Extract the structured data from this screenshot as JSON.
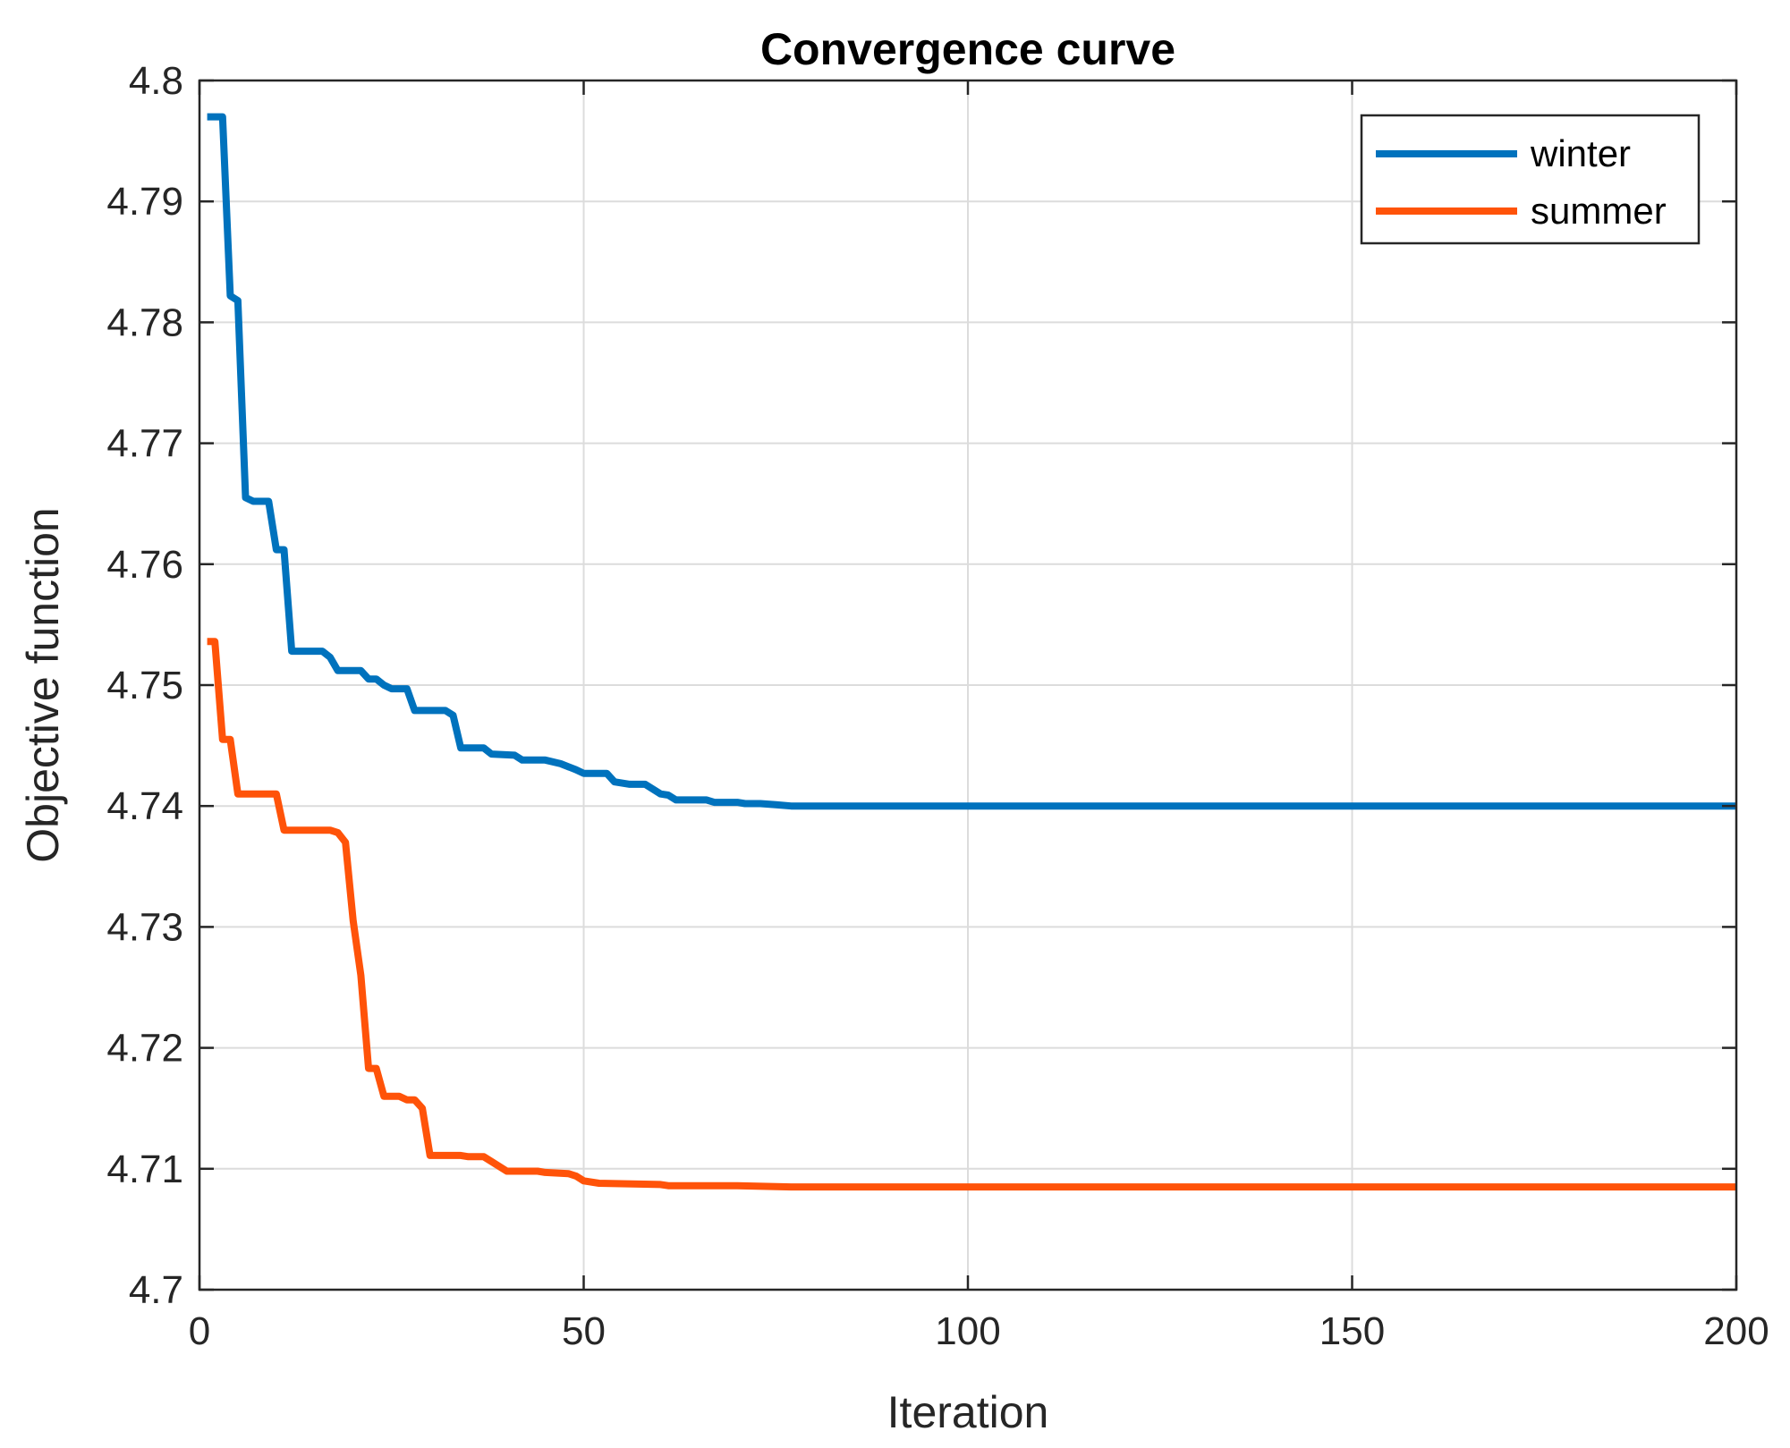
{
  "chart_data": {
    "type": "line",
    "title": "Convergence curve",
    "xlabel": "Iteration",
    "ylabel": "Objective function",
    "xlim": [
      0,
      200
    ],
    "ylim": [
      4.7,
      4.8
    ],
    "xticks": [
      0,
      50,
      100,
      150,
      200
    ],
    "xtick_labels": [
      "0",
      "50",
      "100",
      "150",
      "200"
    ],
    "yticks": [
      4.7,
      4.71,
      4.72,
      4.73,
      4.74,
      4.75,
      4.76,
      4.77,
      4.78,
      4.79,
      4.8
    ],
    "ytick_labels": [
      "4.7",
      "4.71",
      "4.72",
      "4.73",
      "4.74",
      "4.75",
      "4.76",
      "4.77",
      "4.78",
      "4.79",
      "4.8"
    ],
    "grid": true,
    "legend_position": "top-right",
    "series": [
      {
        "name": "winter",
        "color": "#0072BD",
        "points": [
          [
            1,
            4.797
          ],
          [
            3,
            4.797
          ],
          [
            4,
            4.7822
          ],
          [
            5,
            4.7818
          ],
          [
            6,
            4.7655
          ],
          [
            7,
            4.7652
          ],
          [
            9,
            4.7652
          ],
          [
            10,
            4.7612
          ],
          [
            11,
            4.7612
          ],
          [
            12,
            4.7528
          ],
          [
            16,
            4.7528
          ],
          [
            17,
            4.7523
          ],
          [
            18,
            4.7512
          ],
          [
            21,
            4.7512
          ],
          [
            22,
            4.7505
          ],
          [
            23,
            4.7505
          ],
          [
            24,
            4.75
          ],
          [
            25,
            4.7497
          ],
          [
            27,
            4.7497
          ],
          [
            28,
            4.7479
          ],
          [
            32,
            4.7479
          ],
          [
            33,
            4.7475
          ],
          [
            34,
            4.7448
          ],
          [
            37,
            4.7448
          ],
          [
            38,
            4.7443
          ],
          [
            41,
            4.7442
          ],
          [
            42,
            4.7438
          ],
          [
            45,
            4.7438
          ],
          [
            47,
            4.7435
          ],
          [
            49,
            4.743
          ],
          [
            50,
            4.7427
          ],
          [
            53,
            4.7427
          ],
          [
            54,
            4.742
          ],
          [
            56,
            4.7418
          ],
          [
            58,
            4.7418
          ],
          [
            60,
            4.741
          ],
          [
            61,
            4.7409
          ],
          [
            62,
            4.7405
          ],
          [
            66,
            4.7405
          ],
          [
            67,
            4.7403
          ],
          [
            70,
            4.7403
          ],
          [
            71,
            4.7402
          ],
          [
            73,
            4.7402
          ],
          [
            75,
            4.7401
          ],
          [
            77,
            4.74
          ],
          [
            200,
            4.74
          ]
        ]
      },
      {
        "name": "summer",
        "color": "#FF5309",
        "points": [
          [
            1,
            4.7536
          ],
          [
            2,
            4.7536
          ],
          [
            3,
            4.7455
          ],
          [
            4,
            4.7455
          ],
          [
            5,
            4.741
          ],
          [
            9,
            4.741
          ],
          [
            10,
            4.741
          ],
          [
            11,
            4.738
          ],
          [
            17,
            4.738
          ],
          [
            18,
            4.7378
          ],
          [
            19,
            4.737
          ],
          [
            20,
            4.7305
          ],
          [
            21,
            4.726
          ],
          [
            22,
            4.7183
          ],
          [
            23,
            4.7183
          ],
          [
            24,
            4.716
          ],
          [
            26,
            4.716
          ],
          [
            27,
            4.7157
          ],
          [
            28,
            4.7157
          ],
          [
            29,
            4.715
          ],
          [
            30,
            4.7111
          ],
          [
            34,
            4.7111
          ],
          [
            35,
            4.711
          ],
          [
            37,
            4.711
          ],
          [
            38,
            4.7106
          ],
          [
            40,
            4.7098
          ],
          [
            44,
            4.7098
          ],
          [
            45,
            4.7097
          ],
          [
            48,
            4.7096
          ],
          [
            49,
            4.7094
          ],
          [
            50,
            4.709
          ],
          [
            52,
            4.7088
          ],
          [
            60,
            4.7087
          ],
          [
            61,
            4.7086
          ],
          [
            70,
            4.7086
          ],
          [
            77,
            4.7085
          ],
          [
            200,
            4.7085
          ]
        ]
      }
    ]
  }
}
